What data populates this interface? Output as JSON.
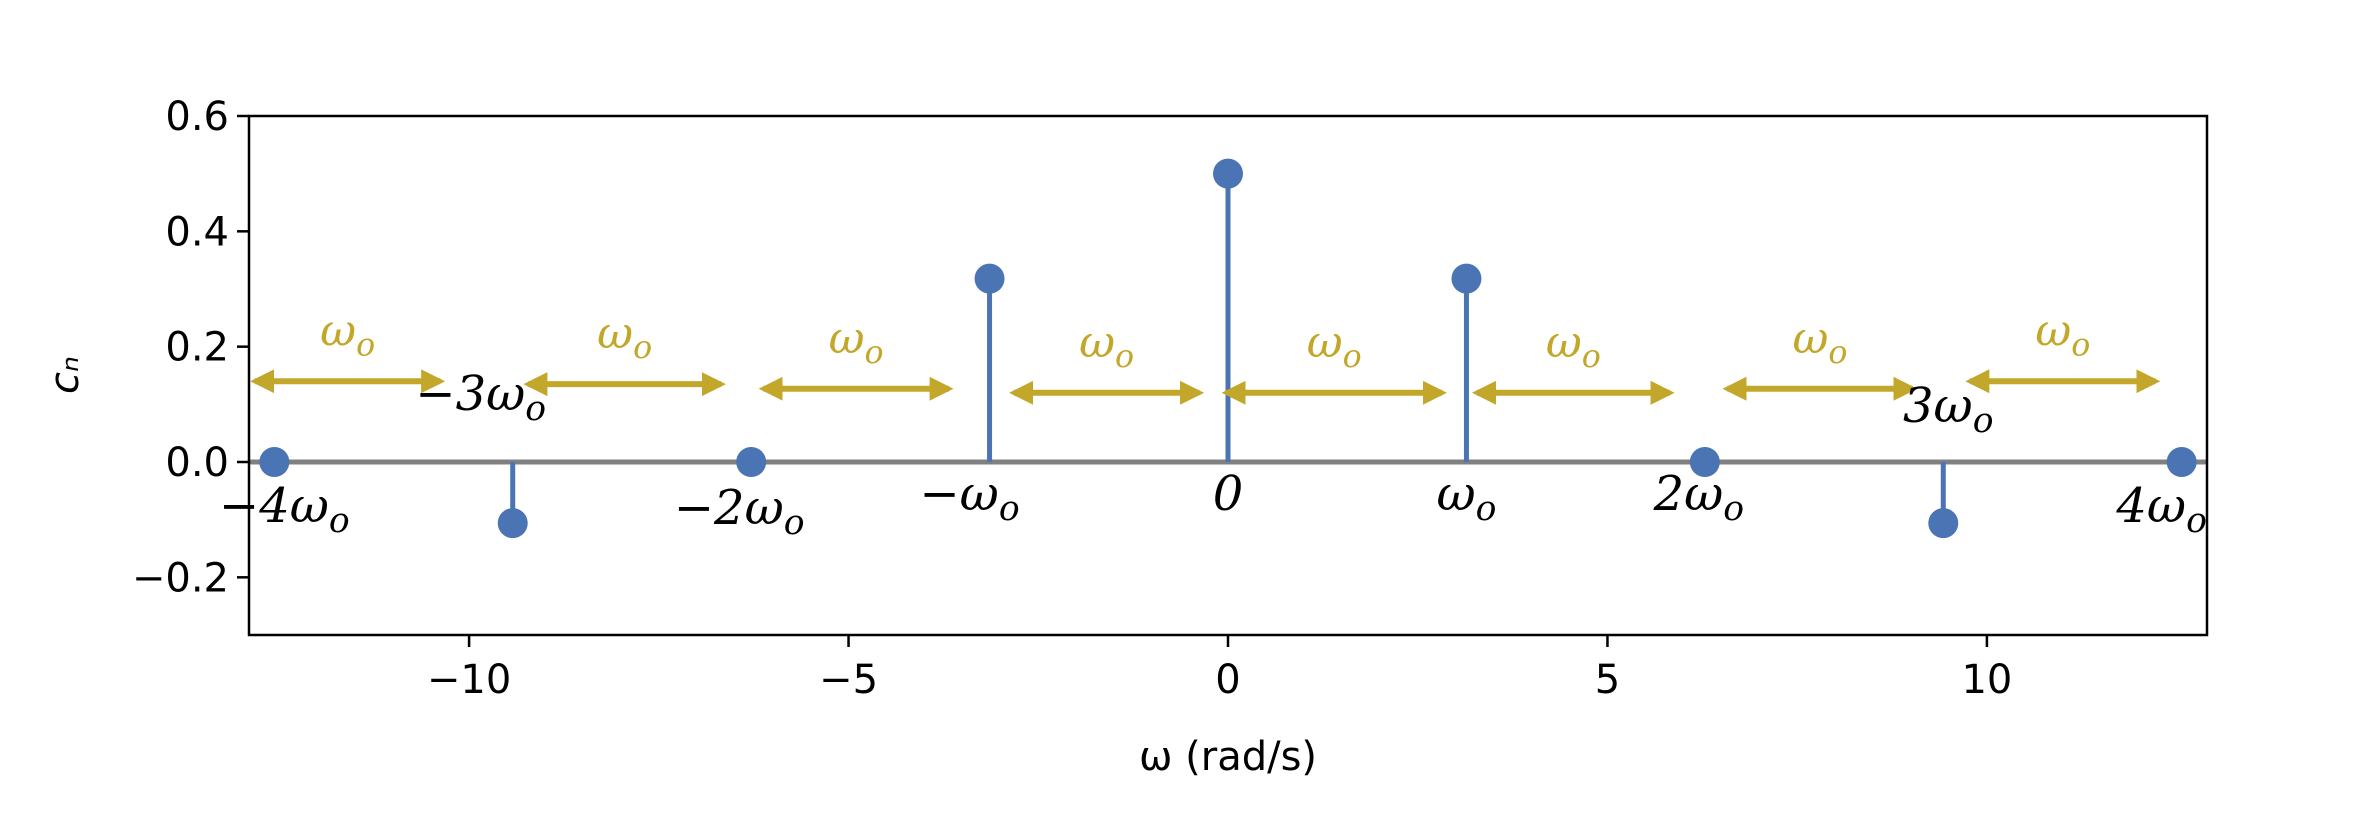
{
  "chart_data": {
    "type": "stem",
    "xlabel": "ω (rad/s)",
    "ylabel": "cₙ",
    "xlim": [
      -12.9,
      12.9
    ],
    "ylim": [
      -0.3,
      0.6
    ],
    "x_ticks": [
      -10,
      -5,
      0,
      5,
      10
    ],
    "x_tick_labels": [
      "−10",
      "−5",
      "0",
      "5",
      "10"
    ],
    "y_ticks": [
      -0.2,
      0.0,
      0.2,
      0.4,
      0.6
    ],
    "y_tick_labels": [
      "−0.2",
      "0.0",
      "0.2",
      "0.4",
      "0.6"
    ],
    "grid": false,
    "baseline_y": 0,
    "stem_color": "#4a74b4",
    "baseline_color": "#808080",
    "annotation_color": "#c3a72a",
    "points": [
      {
        "x": -12.566,
        "y": 0.0,
        "label": "−4ωo"
      },
      {
        "x": -9.425,
        "y": -0.106,
        "label": "−3ωo"
      },
      {
        "x": -6.283,
        "y": 0.0,
        "label": "−2ωo"
      },
      {
        "x": -3.142,
        "y": 0.318,
        "label": "−ωo"
      },
      {
        "x": 0.0,
        "y": 0.5,
        "label": "0"
      },
      {
        "x": 3.142,
        "y": 0.318,
        "label": "ωo"
      },
      {
        "x": 6.283,
        "y": 0.0,
        "label": "2ωo"
      },
      {
        "x": 9.425,
        "y": -0.106,
        "label": "3ωo"
      },
      {
        "x": 12.566,
        "y": 0.0,
        "label": "4ωo"
      }
    ],
    "spacing_annotations": [
      {
        "x_from": -12.9,
        "x_to": -10.3,
        "y": 0.14,
        "label": "ωo"
      },
      {
        "x_from": -9.3,
        "x_to": -6.6,
        "y": 0.135,
        "label": "ωo"
      },
      {
        "x_from": -6.2,
        "x_to": -3.6,
        "y": 0.127,
        "label": "ωo"
      },
      {
        "x_from": -2.9,
        "x_to": -0.3,
        "y": 0.12,
        "label": "ωo"
      },
      {
        "x_from": -0.1,
        "x_to": 2.9,
        "y": 0.12,
        "label": "ωo"
      },
      {
        "x_from": 3.2,
        "x_to": 5.9,
        "y": 0.12,
        "label": "ωo"
      },
      {
        "x_from": 6.5,
        "x_to": 9.1,
        "y": 0.127,
        "label": "ωo"
      },
      {
        "x_from": 9.7,
        "x_to": 12.3,
        "y": 0.14,
        "label": "ωo"
      }
    ]
  }
}
